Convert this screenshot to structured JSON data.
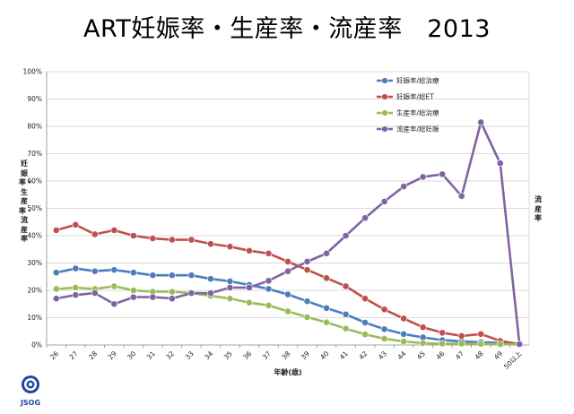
{
  "title": "ART妊娠率・生産率・流産率　2013",
  "logo_text": "JSOG",
  "chart_data": {
    "type": "line",
    "title": "ART妊娠率・生産率・流産率　2013",
    "xlabel": "年齢(歳)",
    "ylabel_left": "妊娠率・生産率・流産率",
    "ylabel_right": "流産率",
    "ylim": [
      0,
      100
    ],
    "yticks": [
      "0%",
      "10%",
      "20%",
      "30%",
      "40%",
      "50%",
      "60%",
      "70%",
      "80%",
      "90%",
      "100%"
    ],
    "grid": true,
    "legend_position": "top-right",
    "categories": [
      "26",
      "27",
      "28",
      "29",
      "30",
      "31",
      "32",
      "33",
      "34",
      "35",
      "36",
      "37",
      "38",
      "39",
      "40",
      "41",
      "42",
      "43",
      "44",
      "45",
      "46",
      "47",
      "48",
      "49",
      "50以上"
    ],
    "series": [
      {
        "name": "妊娠率/総治療",
        "color": "#4a7ebb",
        "values": [
          26.5,
          28,
          27,
          27.5,
          26.5,
          25.5,
          25.5,
          25.5,
          24.2,
          23.3,
          22,
          20.5,
          18.5,
          16,
          13.5,
          11.2,
          8.2,
          5.8,
          4,
          2.8,
          1.8,
          1.3,
          1,
          0.8,
          0.3
        ]
      },
      {
        "name": "妊娠率/総ET",
        "color": "#c0504d",
        "values": [
          42,
          44,
          40.5,
          42,
          40,
          39,
          38.5,
          38.5,
          37,
          36,
          34.5,
          33.5,
          30.5,
          27.5,
          24.5,
          21.5,
          17,
          13,
          9.7,
          6.5,
          4.5,
          3.3,
          4,
          1.5,
          0.3
        ]
      },
      {
        "name": "生産率/総治療",
        "color": "#9bbb59",
        "values": [
          20.5,
          21,
          20.5,
          21.5,
          20,
          19.5,
          19.5,
          19,
          18,
          17,
          15.5,
          14.5,
          12.3,
          10.2,
          8.3,
          6,
          3.9,
          2.3,
          1.3,
          0.7,
          0.5,
          0.5,
          0.4,
          0.3,
          0.2
        ]
      },
      {
        "name": "流産率/総妊娠",
        "color": "#8064a2",
        "values": [
          17,
          18.3,
          19,
          15,
          17.5,
          17.5,
          17,
          19,
          19,
          21,
          21,
          23.5,
          27,
          30.5,
          33.5,
          40,
          46.5,
          52.5,
          58,
          61.5,
          62.5,
          54.5,
          81.5,
          66.5,
          0.3
        ]
      }
    ]
  }
}
